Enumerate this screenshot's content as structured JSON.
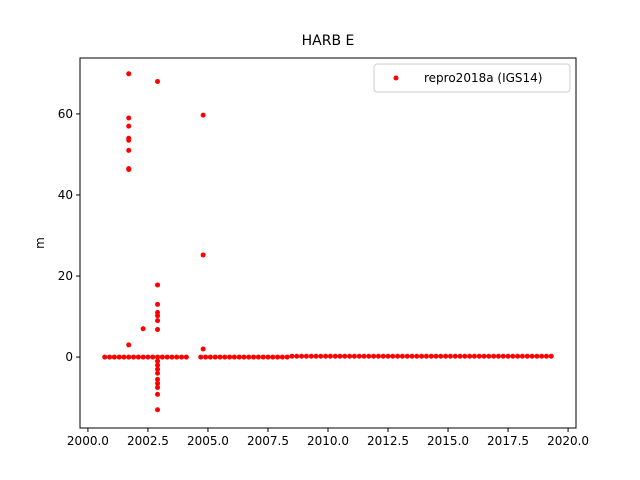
{
  "chart_data": {
    "type": "scatter",
    "title": "HARB E",
    "y_label": "m",
    "x": [
      2001.7,
      2001.7,
      2001.7,
      2001.7,
      2001.7,
      2001.7,
      2001.7,
      2001.7,
      2001.7,
      2002.3,
      2002.9,
      2002.9,
      2002.9,
      2002.9,
      2002.9,
      2002.9,
      2002.9,
      2002.9,
      2002.9,
      2002.9,
      2002.9,
      2002.9,
      2002.9,
      2002.9,
      2002.9,
      2002.9,
      2004.8,
      2004.8,
      2004.8,
      2000.7,
      2000.9,
      2001.1,
      2001.3,
      2001.5,
      2001.7,
      2001.9,
      2002.1,
      2002.3,
      2002.5,
      2002.7,
      2002.9,
      2003.1,
      2003.3,
      2003.5,
      2003.7,
      2003.9,
      2004.1,
      2004.7,
      2004.9,
      2005.1,
      2005.3,
      2005.5,
      2005.7,
      2005.9,
      2006.1,
      2006.3,
      2006.5,
      2006.7,
      2006.9,
      2007.1,
      2007.3,
      2007.5,
      2007.7,
      2007.9,
      2008.1,
      2008.3,
      2008.5,
      2008.7,
      2008.9,
      2009.1,
      2009.3,
      2009.5,
      2009.7,
      2009.9,
      2010.1,
      2010.3,
      2010.5,
      2010.7,
      2010.9,
      2011.1,
      2011.3,
      2011.5,
      2011.7,
      2011.9,
      2012.1,
      2012.3,
      2012.5,
      2012.7,
      2012.9,
      2013.1,
      2013.3,
      2013.5,
      2013.7,
      2013.9,
      2014.1,
      2014.3,
      2014.5,
      2014.7,
      2014.9,
      2015.1,
      2015.3,
      2015.5,
      2015.7,
      2015.9,
      2016.1,
      2016.3,
      2016.5,
      2016.7,
      2016.9,
      2017.1,
      2017.3,
      2017.5,
      2017.7,
      2017.9,
      2018.1,
      2018.3,
      2018.5,
      2018.7,
      2018.9,
      2019.1,
      2019.3
    ],
    "series": [
      {
        "name": "repro2018a (IGS14)",
        "color": "#ff0000",
        "values": [
          69.9,
          59,
          57,
          54,
          53.5,
          51,
          46.5,
          46.3,
          3,
          7,
          68,
          17.8,
          13,
          11,
          10.2,
          9,
          6.8,
          -1,
          -2,
          -3,
          -4,
          -5.5,
          -6.5,
          -7.5,
          -9.2,
          -13,
          59.7,
          25.2,
          2,
          0,
          0,
          0,
          0,
          0,
          0,
          0,
          0,
          0,
          0,
          0,
          0,
          0,
          0,
          0,
          0,
          0,
          0,
          0,
          0,
          0,
          0,
          0,
          0,
          0,
          0,
          0,
          0,
          0,
          0,
          0,
          0,
          0,
          0,
          0,
          0,
          0,
          0.2,
          0.2,
          0.2,
          0.2,
          0.2,
          0.2,
          0.2,
          0.2,
          0.2,
          0.2,
          0.2,
          0.2,
          0.2,
          0.2,
          0.2,
          0.2,
          0.2,
          0.2,
          0.2,
          0.2,
          0.2,
          0.2,
          0.2,
          0.2,
          0.2,
          0.2,
          0.2,
          0.2,
          0.2,
          0.2,
          0.2,
          0.2,
          0.2,
          0.2,
          0.2,
          0.2,
          0.2,
          0.2,
          0.2,
          0.2,
          0.2,
          0.2,
          0.2,
          0.2,
          0.2,
          0.2,
          0.2,
          0.2,
          0.2,
          0.2,
          0.2,
          0.2,
          0.2,
          0.2,
          0.2
        ]
      }
    ],
    "xlim": [
      1999.67,
      2020.33
    ],
    "ylim": [
      -17.5,
      73.8
    ],
    "xticks": [
      {
        "value": 2000,
        "label": "2000.0"
      },
      {
        "value": 2002.5,
        "label": "2002.5"
      },
      {
        "value": 2005,
        "label": "2005.0"
      },
      {
        "value": 2007.5,
        "label": "2007.5"
      },
      {
        "value": 2010,
        "label": "2010.0"
      },
      {
        "value": 2012.5,
        "label": "2012.5"
      },
      {
        "value": 2015,
        "label": "2015.0"
      },
      {
        "value": 2017.5,
        "label": "2017.5"
      },
      {
        "value": 2020,
        "label": "2020.0"
      }
    ],
    "yticks": [
      0,
      20,
      40,
      60
    ],
    "legend": "upper right"
  }
}
